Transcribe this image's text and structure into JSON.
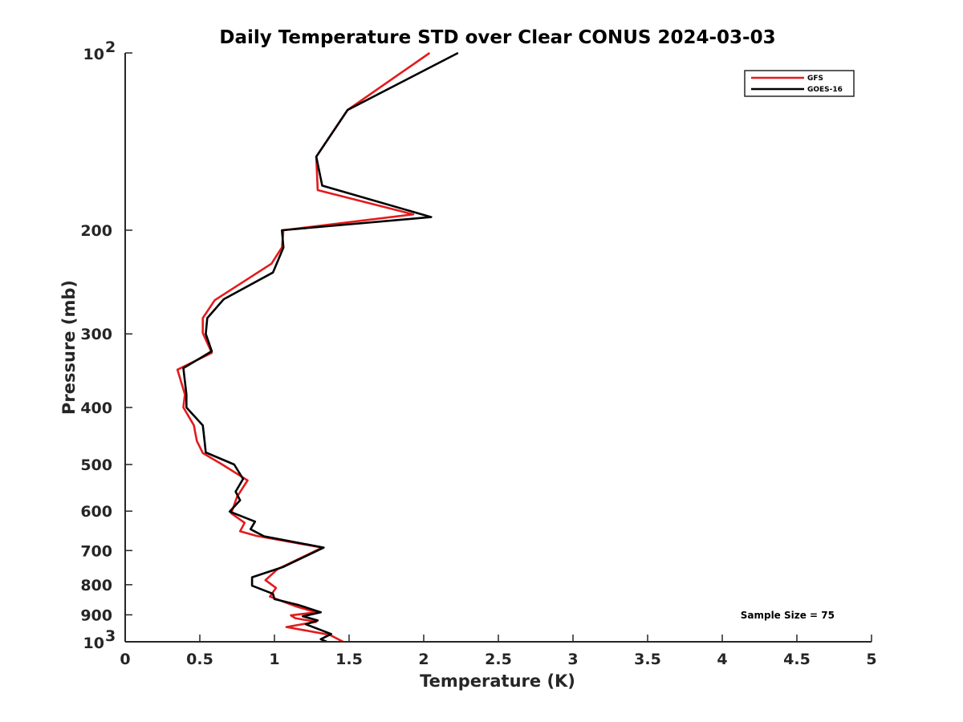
{
  "chart_data": {
    "type": "line",
    "title": "Daily Temperature STD over Clear CONUS 2024-03-03",
    "xlabel": "Temperature (K)",
    "ylabel": "Pressure (mb)",
    "xlim": [
      0,
      5
    ],
    "ylim": [
      100,
      1000
    ],
    "y_scale": "log",
    "y_reversed": true,
    "grid": false,
    "legend_position": "top-right",
    "x_ticks": [
      {
        "value": 0,
        "label": "0"
      },
      {
        "value": 0.5,
        "label": "0.5"
      },
      {
        "value": 1,
        "label": "1"
      },
      {
        "value": 1.5,
        "label": "1.5"
      },
      {
        "value": 2,
        "label": "2"
      },
      {
        "value": 2.5,
        "label": "2.5"
      },
      {
        "value": 3,
        "label": "3"
      },
      {
        "value": 3.5,
        "label": "3.5"
      },
      {
        "value": 4,
        "label": "4"
      },
      {
        "value": 4.5,
        "label": "4.5"
      },
      {
        "value": 5,
        "label": "5"
      }
    ],
    "y_ticks": [
      {
        "value": 100,
        "label": "10",
        "sup": "2"
      },
      {
        "value": 200,
        "label": "200"
      },
      {
        "value": 300,
        "label": "300"
      },
      {
        "value": 400,
        "label": "400"
      },
      {
        "value": 500,
        "label": "500"
      },
      {
        "value": 600,
        "label": "600"
      },
      {
        "value": 700,
        "label": "700"
      },
      {
        "value": 800,
        "label": "800"
      },
      {
        "value": 900,
        "label": "900"
      },
      {
        "value": 1000,
        "label": "10",
        "sup": "3"
      }
    ],
    "annotation": "Sample Size = 75",
    "series": [
      {
        "name": "GFS",
        "color": "#e41a1c",
        "points": [
          [
            2.04,
            100
          ],
          [
            1.49,
            125
          ],
          [
            1.28,
            150
          ],
          [
            1.29,
            171
          ],
          [
            1.93,
            188
          ],
          [
            1.06,
            200
          ],
          [
            1.05,
            214
          ],
          [
            0.98,
            228
          ],
          [
            0.6,
            263
          ],
          [
            0.52,
            282
          ],
          [
            0.52,
            299
          ],
          [
            0.58,
            323
          ],
          [
            0.35,
            345
          ],
          [
            0.4,
            380
          ],
          [
            0.39,
            400
          ],
          [
            0.46,
            429
          ],
          [
            0.48,
            456
          ],
          [
            0.52,
            478
          ],
          [
            0.65,
            500
          ],
          [
            0.82,
            532
          ],
          [
            0.75,
            567
          ],
          [
            0.71,
            605
          ],
          [
            0.8,
            628
          ],
          [
            0.77,
            649
          ],
          [
            0.88,
            661
          ],
          [
            1.32,
            692
          ],
          [
            1.02,
            753
          ],
          [
            0.94,
            786
          ],
          [
            1.01,
            810
          ],
          [
            0.97,
            838
          ],
          [
            1.15,
            872
          ],
          [
            1.28,
            891
          ],
          [
            1.11,
            902
          ],
          [
            1.14,
            912
          ],
          [
            1.28,
            925
          ],
          [
            1.08,
            944
          ],
          [
            1.37,
            973
          ],
          [
            1.46,
            1000
          ]
        ]
      },
      {
        "name": "GOES-16",
        "color": "#000000",
        "points": [
          [
            2.23,
            100
          ],
          [
            1.49,
            125
          ],
          [
            1.28,
            150
          ],
          [
            1.32,
            168
          ],
          [
            2.05,
            190
          ],
          [
            1.05,
            200
          ],
          [
            1.06,
            214
          ],
          [
            0.99,
            236
          ],
          [
            0.66,
            262
          ],
          [
            0.55,
            282
          ],
          [
            0.54,
            300
          ],
          [
            0.58,
            321
          ],
          [
            0.39,
            343
          ],
          [
            0.41,
            380
          ],
          [
            0.41,
            400
          ],
          [
            0.52,
            429
          ],
          [
            0.53,
            452
          ],
          [
            0.54,
            477
          ],
          [
            0.73,
            500
          ],
          [
            0.79,
            529
          ],
          [
            0.74,
            556
          ],
          [
            0.77,
            575
          ],
          [
            0.7,
            601
          ],
          [
            0.87,
            625
          ],
          [
            0.84,
            644
          ],
          [
            0.93,
            662
          ],
          [
            1.33,
            692
          ],
          [
            1.06,
            746
          ],
          [
            0.85,
            777
          ],
          [
            0.85,
            803
          ],
          [
            0.99,
            829
          ],
          [
            1.0,
            846
          ],
          [
            1.16,
            866
          ],
          [
            1.31,
            891
          ],
          [
            1.19,
            905
          ],
          [
            1.29,
            920
          ],
          [
            1.21,
            934
          ],
          [
            1.38,
            970
          ],
          [
            1.31,
            990
          ],
          [
            1.35,
            1000
          ]
        ]
      }
    ]
  }
}
